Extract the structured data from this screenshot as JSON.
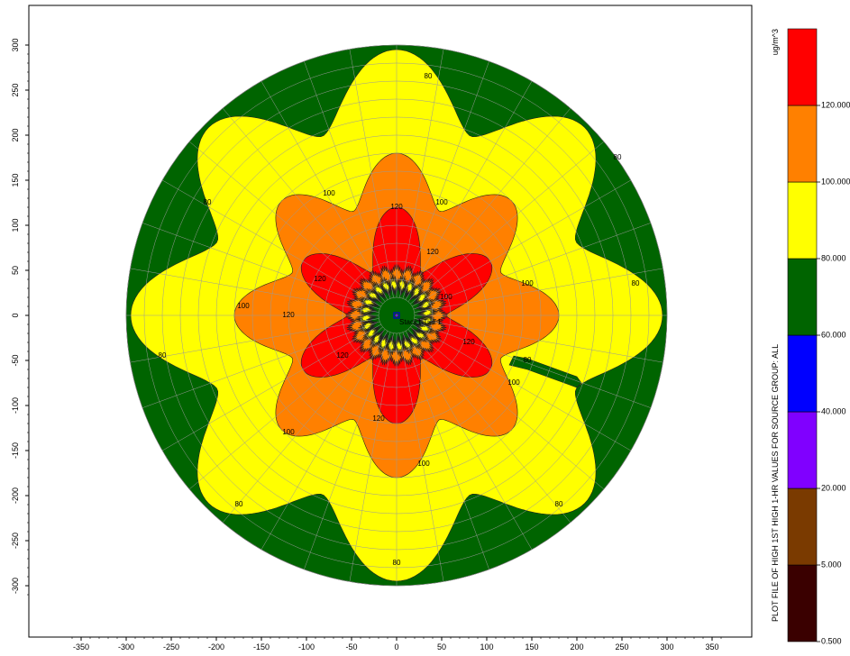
{
  "chart_data": {
    "type": "heatmap",
    "title": "",
    "xlabel": "",
    "ylabel": "",
    "xlim": [
      -370,
      370
    ],
    "ylim": [
      -320,
      310
    ],
    "x_ticks": [
      -350,
      -300,
      -250,
      -200,
      -150,
      -100,
      -50,
      0,
      50,
      100,
      150,
      200,
      250,
      300,
      350
    ],
    "y_ticks": [
      -300,
      -250,
      -200,
      -150,
      -100,
      -50,
      0,
      50,
      100,
      150,
      200,
      250,
      300
    ],
    "grid": true,
    "polar_grid_radii": [
      20,
      40,
      60,
      80,
      100,
      120,
      140,
      160,
      180,
      200,
      220,
      240,
      260,
      280,
      300
    ],
    "source_label": "Stack1 Tier 1",
    "contours": [
      {
        "level": 60,
        "label": "60",
        "color": "#006400"
      },
      {
        "level": 80,
        "label": "80",
        "color": "#ffff00"
      },
      {
        "level": 100,
        "label": "100",
        "color": "#ff8000"
      },
      {
        "level": 120,
        "label": "120",
        "color": "#ff0000"
      }
    ],
    "contour_labels": [
      {
        "text": "80",
        "x": 35,
        "y": 265
      },
      {
        "text": "80",
        "x": 245,
        "y": 175
      },
      {
        "text": "80",
        "x": 265,
        "y": 35
      },
      {
        "text": "80",
        "x": -210,
        "y": 125
      },
      {
        "text": "80",
        "x": -260,
        "y": -45
      },
      {
        "text": "80",
        "x": -175,
        "y": -210
      },
      {
        "text": "80",
        "x": 180,
        "y": -210
      },
      {
        "text": "80",
        "x": 0,
        "y": -275
      },
      {
        "text": "80",
        "x": 145,
        "y": -50
      },
      {
        "text": "100",
        "x": -75,
        "y": 135
      },
      {
        "text": "100",
        "x": 50,
        "y": 125
      },
      {
        "text": "100",
        "x": 145,
        "y": 35
      },
      {
        "text": "100",
        "x": -170,
        "y": 10
      },
      {
        "text": "100",
        "x": 130,
        "y": -75
      },
      {
        "text": "100",
        "x": -120,
        "y": -130
      },
      {
        "text": "100",
        "x": 30,
        "y": -165
      },
      {
        "text": "100",
        "x": 55,
        "y": 20
      },
      {
        "text": "120",
        "x": 0,
        "y": 120
      },
      {
        "text": "120",
        "x": 40,
        "y": 70
      },
      {
        "text": "120",
        "x": -85,
        "y": 40
      },
      {
        "text": "120",
        "x": -120,
        "y": 0
      },
      {
        "text": "120",
        "x": -60,
        "y": -45
      },
      {
        "text": "120",
        "x": 80,
        "y": -30
      },
      {
        "text": "120",
        "x": -20,
        "y": -115
      }
    ],
    "legend": {
      "position": "right",
      "unit": "ug/m^3",
      "caption": "PLOT FILE OF  HIGH 1ST HIGH 1-HR VALUES FOR SOURCE GROUP: ALL",
      "levels": [
        {
          "label": "0.500",
          "color": "#3a0000"
        },
        {
          "label": "5.000",
          "color": "#7a3a00"
        },
        {
          "label": "20.000",
          "color": "#8000ff"
        },
        {
          "label": "40.000",
          "color": "#0000ff"
        },
        {
          "label": "60.000",
          "color": "#006400"
        },
        {
          "label": "80.000",
          "color": "#ffff00"
        },
        {
          "label": "100.000",
          "color": "#ff8000"
        },
        {
          "label": "120.000",
          "color": "#ff0000"
        }
      ]
    }
  }
}
